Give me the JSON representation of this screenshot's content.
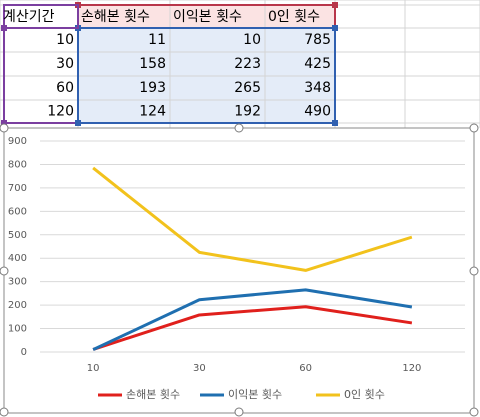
{
  "table": {
    "header": [
      "계산기간",
      "손해본 횟수",
      "이익본 횟수",
      "0인 횟수"
    ],
    "rows": [
      [
        10,
        11,
        10,
        785
      ],
      [
        30,
        158,
        223,
        425
      ],
      [
        60,
        193,
        265,
        348
      ],
      [
        120,
        124,
        192,
        490
      ]
    ]
  },
  "chart_data": {
    "type": "line",
    "categories": [
      "10",
      "30",
      "60",
      "120"
    ],
    "series": [
      {
        "name": "손해본 횟수",
        "color": "#e0201c",
        "values": [
          11,
          158,
          193,
          124
        ]
      },
      {
        "name": "이익본 횟수",
        "color": "#1f6fb0",
        "values": [
          10,
          223,
          265,
          192
        ]
      },
      {
        "name": "0인 횟수",
        "color": "#f2c21c",
        "values": [
          785,
          425,
          348,
          490
        ]
      }
    ],
    "ylim": [
      0,
      900
    ],
    "yticks": [
      0,
      100,
      200,
      300,
      400,
      500,
      600,
      700,
      800,
      900
    ],
    "grid": true,
    "legend": "bottom"
  }
}
